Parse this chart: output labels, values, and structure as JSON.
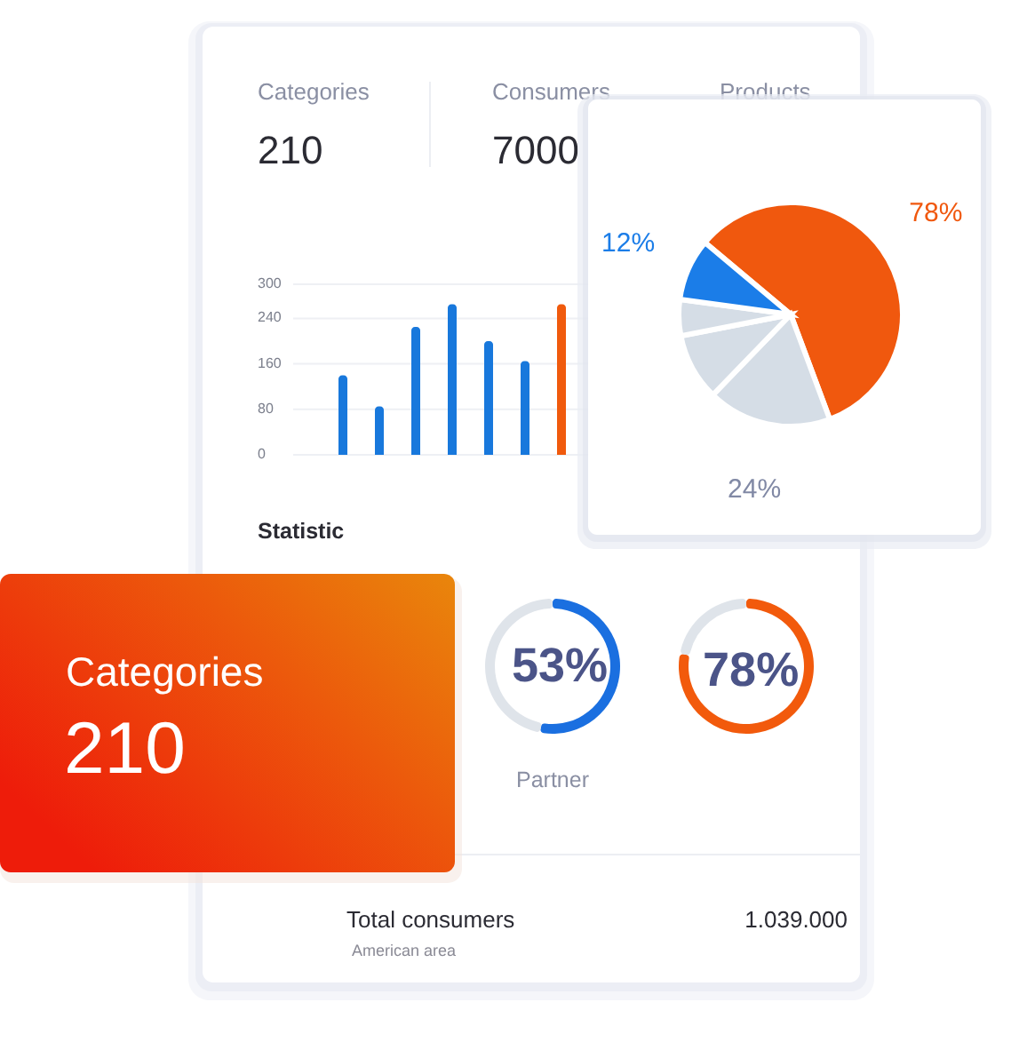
{
  "chart_data": [
    {
      "type": "other",
      "annotations": [
        "Categories",
        "210",
        "Consumers",
        "7000",
        "Products"
      ]
    },
    {
      "type": "bar",
      "categories": [
        null,
        null,
        null,
        null,
        null,
        null,
        null
      ],
      "values": [
        140,
        85,
        225,
        265,
        200,
        165,
        265
      ],
      "colors": [
        "#1878dc",
        "#1878dc",
        "#1878dc",
        "#1878dc",
        "#1878dc",
        "#1878dc",
        "#f05a0d"
      ],
      "ylim": [
        0,
        300
      ],
      "yticks": [
        0,
        80,
        160,
        240,
        300
      ],
      "grid": "y",
      "tick_labels": "y"
    },
    {
      "type": "pie",
      "categories": [
        null,
        null,
        null,
        null,
        null
      ],
      "values": [
        78,
        24,
        13,
        7,
        12
      ],
      "colors": [
        "#f0580e",
        "#d5dde6",
        "#d5dde6",
        "#d5dde6",
        "#1b7de8"
      ],
      "value_labels": [
        "78%",
        "24%",
        null,
        null,
        "12%"
      ]
    },
    {
      "type": "other",
      "title": "Statistic"
    },
    {
      "type": "other",
      "annotations": [
        "Categories",
        "210"
      ]
    },
    {
      "type": "donut",
      "title": "Partner",
      "categories": [
        null,
        null
      ],
      "values": [
        53,
        47
      ],
      "colors": [
        "#1a6fe0",
        "#dfe4ea"
      ],
      "value_labels": [
        "53%",
        null
      ]
    },
    {
      "type": "donut",
      "categories": [
        null,
        null
      ],
      "values": [
        78,
        22
      ],
      "colors": [
        "#f25a0c",
        "#dfe4ea"
      ],
      "value_labels": [
        "78%",
        null
      ]
    },
    {
      "type": "other",
      "annotations": [
        "Total consumers",
        "American area",
        "1.039.000"
      ]
    }
  ]
}
